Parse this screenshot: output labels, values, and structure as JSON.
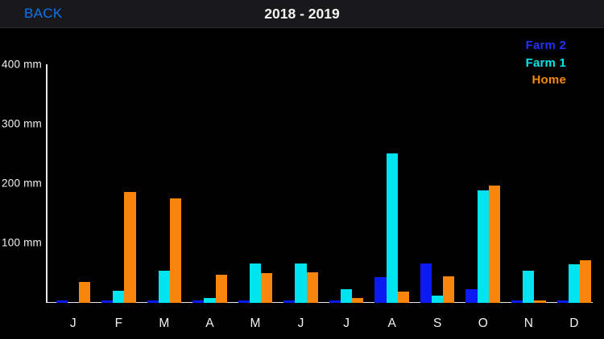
{
  "nav": {
    "back_label": "BACK",
    "title": "2018 - 2019",
    "back_color": "#0f74ec",
    "bar_color": "#19191b"
  },
  "legend": {
    "position": "top-right",
    "items": [
      {
        "label": "Farm 2",
        "color": "#2232fa"
      },
      {
        "label": "Farm 1",
        "color": "#00e5ee"
      },
      {
        "label": "Home",
        "color": "#f8870e"
      }
    ]
  },
  "chart_data": {
    "type": "bar",
    "title": "2018 - 2019",
    "ylabel": "mm",
    "ylim": [
      0,
      400
    ],
    "grid": false,
    "legend_position": "top-right",
    "background": "#000000",
    "axis_color": "#e9e9e9",
    "yticks": [
      {
        "value": 400,
        "label": "400 mm"
      },
      {
        "value": 300,
        "label": "300 mm"
      },
      {
        "value": 200,
        "label": "200 mm"
      },
      {
        "value": 100,
        "label": "100 mm"
      }
    ],
    "categories": [
      "J",
      "F",
      "M",
      "A",
      "M",
      "J",
      "J",
      "A",
      "S",
      "O",
      "N",
      "D"
    ],
    "series": [
      {
        "name": "Farm 2",
        "color": "#0b1af0",
        "values": [
          3,
          3,
          3,
          3,
          3,
          3,
          3,
          43,
          65,
          22,
          3,
          3
        ]
      },
      {
        "name": "Farm 1",
        "color": "#00e4ef",
        "values": [
          0,
          19,
          53,
          7,
          65,
          65,
          22,
          250,
          11,
          188,
          53,
          64
        ]
      },
      {
        "name": "Home",
        "color": "#f8860d",
        "values": [
          34,
          186,
          175,
          46,
          49,
          51,
          7,
          18,
          44,
          196,
          4,
          71
        ]
      }
    ]
  }
}
